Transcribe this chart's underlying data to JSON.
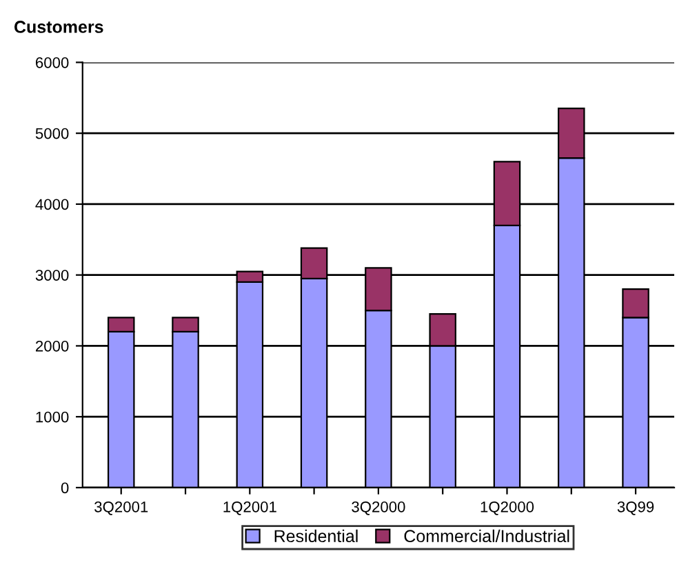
{
  "chart_data": {
    "type": "bar",
    "stacked": true,
    "title": "Customers",
    "categories": [
      "3Q2001",
      null,
      "1Q2001",
      null,
      "3Q2000",
      null,
      "1Q2000",
      null,
      "3Q99"
    ],
    "series": [
      {
        "name": "Residential",
        "color": "#9999ff",
        "values": [
          2200,
          2200,
          2900,
          2950,
          2500,
          2000,
          3700,
          4650,
          2400
        ]
      },
      {
        "name": "Commercial/Industrial",
        "color": "#993366",
        "values": [
          200,
          200,
          150,
          430,
          600,
          450,
          900,
          700,
          400
        ]
      }
    ],
    "ylim": [
      0,
      6000
    ],
    "yticks": [
      0,
      1000,
      2000,
      3000,
      4000,
      5000,
      6000
    ],
    "grid": "y",
    "legend": "bottom"
  }
}
